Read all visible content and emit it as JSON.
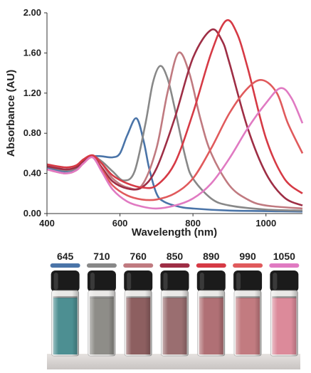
{
  "chart_data": {
    "type": "line",
    "xlabel": "Wavelength (nm)",
    "ylabel": "Absorbance (AU)",
    "xlim": [
      400,
      1100
    ],
    "ylim": [
      0,
      2.0
    ],
    "xticks": [
      "400",
      "600",
      "800",
      "1000"
    ],
    "yticks": [
      "0.00",
      "0.40",
      "0.80",
      "1.20",
      "1.60",
      "2.00"
    ],
    "grid": false,
    "series": [
      {
        "name": "645",
        "color": "#4a74a8",
        "x": [
          400,
          450,
          480,
          500,
          525,
          550,
          580,
          600,
          620,
          645,
          665,
          680,
          700,
          720,
          760,
          800,
          900,
          1100
        ],
        "y": [
          0.46,
          0.42,
          0.45,
          0.52,
          0.57,
          0.57,
          0.56,
          0.6,
          0.78,
          0.95,
          0.72,
          0.45,
          0.2,
          0.12,
          0.07,
          0.05,
          0.03,
          0.02
        ]
      },
      {
        "name": "710",
        "color": "#888888",
        "x": [
          400,
          450,
          480,
          500,
          525,
          550,
          580,
          610,
          640,
          670,
          690,
          710,
          730,
          750,
          780,
          800,
          850,
          900,
          1000,
          1100
        ],
        "y": [
          0.47,
          0.43,
          0.45,
          0.52,
          0.57,
          0.52,
          0.42,
          0.33,
          0.42,
          0.9,
          1.3,
          1.47,
          1.35,
          1.05,
          0.55,
          0.35,
          0.15,
          0.08,
          0.04,
          0.03
        ]
      },
      {
        "name": "760",
        "color": "#c07a80",
        "x": [
          400,
          450,
          480,
          500,
          525,
          550,
          580,
          620,
          660,
          700,
          730,
          760,
          790,
          820,
          850,
          900,
          950,
          1000,
          1100
        ],
        "y": [
          0.48,
          0.44,
          0.46,
          0.53,
          0.58,
          0.5,
          0.35,
          0.26,
          0.28,
          0.65,
          1.2,
          1.6,
          1.4,
          0.95,
          0.6,
          0.28,
          0.14,
          0.08,
          0.05
        ]
      },
      {
        "name": "850",
        "color": "#9e2e45",
        "x": [
          400,
          450,
          480,
          500,
          525,
          550,
          580,
          620,
          660,
          700,
          750,
          800,
          850,
          880,
          900,
          950,
          1000,
          1050,
          1100
        ],
        "y": [
          0.47,
          0.44,
          0.46,
          0.52,
          0.57,
          0.46,
          0.32,
          0.25,
          0.26,
          0.45,
          0.95,
          1.55,
          1.83,
          1.72,
          1.5,
          0.85,
          0.4,
          0.16,
          0.08
        ]
      },
      {
        "name": "890",
        "color": "#d63a45",
        "x": [
          400,
          450,
          480,
          500,
          525,
          550,
          580,
          620,
          660,
          700,
          750,
          800,
          850,
          890,
          920,
          950,
          1000,
          1050,
          1100
        ],
        "y": [
          0.49,
          0.46,
          0.48,
          0.54,
          0.58,
          0.5,
          0.38,
          0.3,
          0.26,
          0.28,
          0.5,
          1.0,
          1.6,
          1.92,
          1.8,
          1.45,
          0.75,
          0.35,
          0.2
        ]
      },
      {
        "name": "990",
        "color": "#e05a5c",
        "x": [
          400,
          450,
          480,
          500,
          525,
          550,
          580,
          620,
          660,
          700,
          750,
          800,
          850,
          900,
          950,
          990,
          1030,
          1060,
          1100
        ],
        "y": [
          0.44,
          0.4,
          0.43,
          0.5,
          0.56,
          0.44,
          0.28,
          0.18,
          0.14,
          0.14,
          0.2,
          0.35,
          0.65,
          1.0,
          1.25,
          1.33,
          1.2,
          0.9,
          0.6
        ]
      },
      {
        "name": "1050",
        "color": "#e07ac2",
        "x": [
          400,
          450,
          480,
          500,
          525,
          550,
          580,
          620,
          660,
          700,
          750,
          800,
          850,
          900,
          950,
          1000,
          1040,
          1070,
          1100
        ],
        "y": [
          0.44,
          0.4,
          0.43,
          0.5,
          0.56,
          0.42,
          0.24,
          0.12,
          0.07,
          0.05,
          0.08,
          0.15,
          0.3,
          0.55,
          0.85,
          1.1,
          1.25,
          1.15,
          0.9
        ]
      }
    ]
  },
  "vials": [
    {
      "label": "645",
      "color": "#4a74a8",
      "liquid": "#4d8f92"
    },
    {
      "label": "710",
      "color": "#888888",
      "liquid": "#8e8d88"
    },
    {
      "label": "760",
      "color": "#c07a80",
      "liquid": "#8d5f60"
    },
    {
      "label": "850",
      "color": "#9e2e45",
      "liquid": "#9a6e70"
    },
    {
      "label": "890",
      "color": "#d63a45",
      "liquid": "#b07075"
    },
    {
      "label": "990",
      "color": "#e05a5c",
      "liquid": "#c27b80"
    },
    {
      "label": "1050",
      "color": "#e07ac2",
      "liquid": "#dc8a9a"
    }
  ]
}
